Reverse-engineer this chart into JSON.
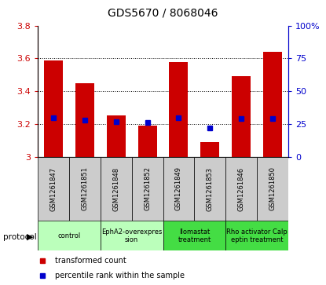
{
  "title": "GDS5670 / 8068046",
  "samples": [
    "GSM1261847",
    "GSM1261851",
    "GSM1261848",
    "GSM1261852",
    "GSM1261849",
    "GSM1261853",
    "GSM1261846",
    "GSM1261850"
  ],
  "transformed_counts": [
    3.59,
    3.45,
    3.25,
    3.19,
    3.58,
    3.09,
    3.49,
    3.64
  ],
  "percentile_ranks": [
    30,
    28,
    27,
    26,
    30,
    22,
    29,
    29
  ],
  "ylim_left": [
    3.0,
    3.8
  ],
  "ylim_right": [
    0,
    100
  ],
  "yticks_left": [
    3.0,
    3.2,
    3.4,
    3.6,
    3.8
  ],
  "yticks_right": [
    0,
    25,
    50,
    75,
    100
  ],
  "groups": [
    {
      "label": "control",
      "indices": [
        0,
        1
      ],
      "color": "#bbffbb"
    },
    {
      "label": "EphA2-overexpres\nsion",
      "indices": [
        2,
        3
      ],
      "color": "#bbffbb"
    },
    {
      "label": "Ilomastat\ntreatment",
      "indices": [
        4,
        5
      ],
      "color": "#44dd44"
    },
    {
      "label": "Rho activator Calp\neptin treatment",
      "indices": [
        6,
        7
      ],
      "color": "#44dd44"
    }
  ],
  "bar_color": "#cc0000",
  "dot_color": "#0000cc",
  "bar_width": 0.6,
  "base_value": 3.0,
  "tick_color_left": "#cc0000",
  "tick_color_right": "#0000cc",
  "sample_bg_color": "#cccccc",
  "gridline_vals": [
    3.2,
    3.4,
    3.6
  ],
  "legend_items": [
    {
      "color": "#cc0000",
      "label": "transformed count"
    },
    {
      "color": "#0000cc",
      "label": "percentile rank within the sample"
    }
  ]
}
